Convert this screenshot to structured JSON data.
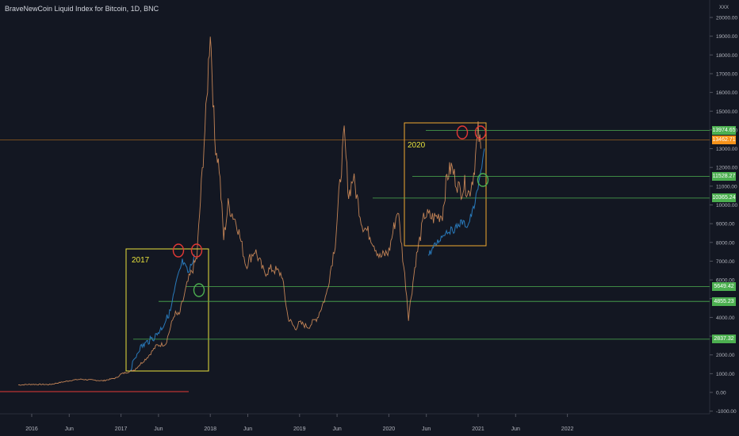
{
  "title": "BraveNewCoin Liquid Index for Bitcoin, 1D, BNC",
  "currency_tag": "XXX",
  "colors": {
    "background": "#131722",
    "axis_text": "#b2b5be",
    "price_line": "#e2965f",
    "projection": "#2a7fc4",
    "hline": "#4caf50",
    "support_red": "#e53935",
    "box": "#e8e23c",
    "box2": "#f0a830",
    "marker_red": "#e53935",
    "marker_green": "#4caf50",
    "current_price_bg": "#f7931a",
    "level_bg": "#4caf50"
  },
  "chart_data": {
    "type": "line",
    "ylim": [
      -1000,
      20000
    ],
    "x_ticks": [
      "2016",
      "Jun",
      "2017",
      "Jun",
      "2018",
      "Jun",
      "2019",
      "Jun",
      "2020",
      "Jun",
      "2021",
      "Jun",
      "2022"
    ],
    "y_ticks": [
      "20000.00",
      "19000.00",
      "18000.00",
      "17000.00",
      "16000.00",
      "15000.00",
      "14000.00",
      "13000.00",
      "12000.00",
      "11000.00",
      "10000.00",
      "9000.00",
      "8000.00",
      "7000.00",
      "6000.00",
      "5000.00",
      "4000.00",
      "3000.00",
      "2000.00",
      "1000.00",
      "0.00",
      "-1000.00"
    ],
    "series": [
      {
        "x": [
          2015.85,
          2016.0,
          2016.2,
          2016.45,
          2016.55,
          2016.8,
          2016.95,
          2017.0,
          2017.15,
          2017.3,
          2017.4,
          2017.5,
          2017.6,
          2017.65,
          2017.75,
          2017.85,
          2017.9,
          2017.96,
          2018.0,
          2018.05,
          2018.1,
          2018.15,
          2018.2,
          2018.3,
          2018.4,
          2018.5,
          2018.6,
          2018.7,
          2018.8,
          2018.87,
          2018.95,
          2019.0,
          2019.1,
          2019.2,
          2019.3,
          2019.4,
          2019.45,
          2019.5,
          2019.55,
          2019.6,
          2019.7,
          2019.8,
          2019.9,
          2020.0,
          2020.1,
          2020.2,
          2020.22,
          2020.3,
          2020.4,
          2020.5,
          2020.6,
          2020.65,
          2020.7,
          2020.8,
          2020.85,
          2020.9,
          2020.95,
          2021.0,
          2021.03
        ],
        "values": [
          400,
          430,
          420,
          650,
          700,
          620,
          780,
          980,
          1200,
          1900,
          2500,
          2600,
          4200,
          4100,
          5900,
          7200,
          11000,
          15500,
          19500,
          13500,
          12000,
          8200,
          10000,
          9000,
          6800,
          7600,
          6400,
          6600,
          6300,
          4000,
          3400,
          3700,
          3500,
          4000,
          5200,
          8000,
          11000,
          13800,
          10500,
          11500,
          9000,
          8300,
          7200,
          7500,
          9800,
          5200,
          4000,
          7000,
          9500,
          9300,
          9500,
          11500,
          12000,
          10700,
          11100,
          10600,
          11700,
          13900,
          13000
        ]
      }
    ],
    "horizontal_levels": [
      "13974.65",
      "13462.71",
      "11528.27",
      "10365.24",
      "5649.42",
      "4855.23",
      "2837.32"
    ],
    "annotations": [
      "2017",
      "2020"
    ]
  }
}
